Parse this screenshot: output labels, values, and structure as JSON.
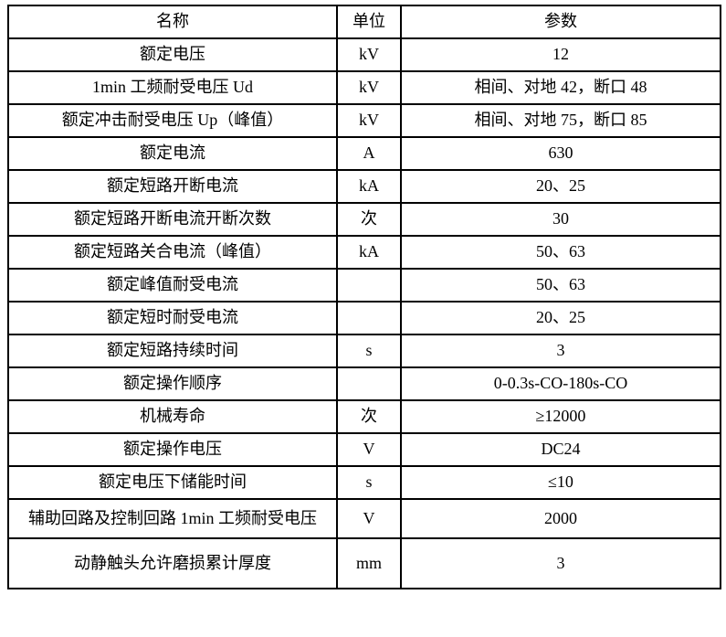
{
  "table": {
    "headers": [
      "名称",
      "单位",
      "参数"
    ],
    "rows": [
      {
        "name": "额定电压",
        "unit": "kV",
        "value": "12"
      },
      {
        "name": "1min 工频耐受电压 Ud",
        "unit": "kV",
        "value": "相间、对地 42，断口 48"
      },
      {
        "name": "额定冲击耐受电压 Up（峰值）",
        "unit": "kV",
        "value": "相间、对地 75，断口 85"
      },
      {
        "name": "额定电流",
        "unit": "A",
        "value": "630"
      },
      {
        "name": "额定短路开断电流",
        "unit": "kA",
        "value": "20、25"
      },
      {
        "name": "额定短路开断电流开断次数",
        "unit": "次",
        "value": "30"
      },
      {
        "name": "额定短路关合电流（峰值）",
        "unit": "kA",
        "value": "50、63"
      },
      {
        "name": "额定峰值耐受电流",
        "unit": "",
        "value": "50、63"
      },
      {
        "name": "额定短时耐受电流",
        "unit": "",
        "value": "20、25"
      },
      {
        "name": "额定短路持续时间",
        "unit": "s",
        "value": "3"
      },
      {
        "name": "额定操作顺序",
        "unit": "",
        "value": "0-0.3s-CO-180s-CO"
      },
      {
        "name": "机械寿命",
        "unit": "次",
        "value": "≥12000"
      },
      {
        "name": "额定操作电压",
        "unit": "V",
        "value": "DC24"
      },
      {
        "name": "额定电压下储能时间",
        "unit": "s",
        "value": "≤10"
      },
      {
        "name": "辅助回路及控制回路 1min 工频耐受电压",
        "unit": "V",
        "value": "2000"
      },
      {
        "name": "动静触头允许磨损累计厚度",
        "unit": "mm",
        "value": "3"
      }
    ]
  }
}
